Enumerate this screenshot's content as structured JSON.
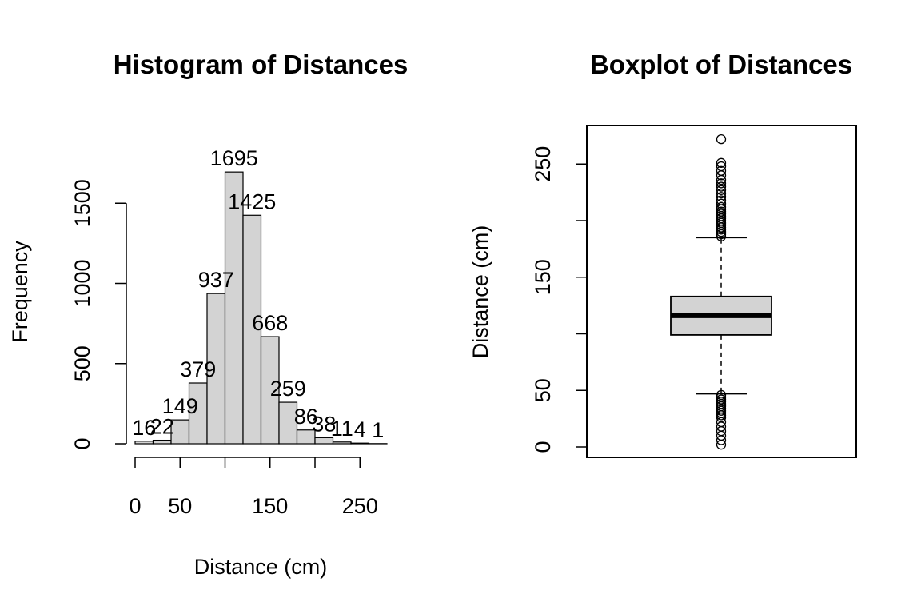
{
  "chart_data": [
    {
      "type": "bar",
      "title": "Histogram of Distances",
      "xlabel": "Distance (cm)",
      "ylabel": "Frequency",
      "bin_edges": [
        0,
        20,
        40,
        60,
        80,
        100,
        120,
        140,
        160,
        180,
        200,
        220,
        240,
        260,
        280
      ],
      "values": [
        16,
        22,
        149,
        379,
        937,
        1695,
        1425,
        668,
        259,
        86,
        38,
        11,
        4,
        1
      ],
      "value_labels": [
        "16",
        "22",
        "149",
        "379",
        "937",
        "1695",
        "1425",
        "668",
        "259",
        "86",
        "38",
        "11",
        "4",
        "1"
      ],
      "xlim": [
        0,
        280
      ],
      "ylim": [
        0,
        1700
      ],
      "x_ticks": [
        0,
        50,
        100,
        150,
        200,
        250
      ],
      "x_tick_labels": [
        "0",
        "50",
        "",
        "150",
        "",
        "250"
      ],
      "y_ticks": [
        0,
        500,
        1000,
        1500
      ],
      "y_tick_labels": [
        "0",
        "500",
        "1000",
        "1500"
      ],
      "bar_color": "#d3d3d3"
    },
    {
      "type": "boxplot",
      "title": "Boxplot of Distances",
      "xlabel": "",
      "ylabel": "Distance (cm)",
      "ylim": [
        0,
        280
      ],
      "y_ticks": [
        0,
        50,
        100,
        150,
        200,
        250
      ],
      "y_tick_labels": [
        "0",
        "50",
        "",
        "150",
        "",
        "250"
      ],
      "stats": {
        "lower_whisker": 47,
        "q1": 99,
        "median": 116,
        "q3": 133,
        "upper_whisker": 185
      },
      "outliers_high": [
        186,
        188,
        190,
        192,
        194,
        196,
        198,
        200,
        202,
        204,
        206,
        208,
        210,
        212,
        215,
        218,
        221,
        224,
        227,
        230,
        233,
        236,
        240,
        244,
        248,
        251,
        272
      ],
      "outliers_low": [
        46,
        44,
        42,
        40,
        38,
        36,
        34,
        32,
        30,
        28,
        26,
        22,
        18,
        14,
        10,
        6,
        2
      ],
      "box_color": "#d3d3d3"
    }
  ]
}
